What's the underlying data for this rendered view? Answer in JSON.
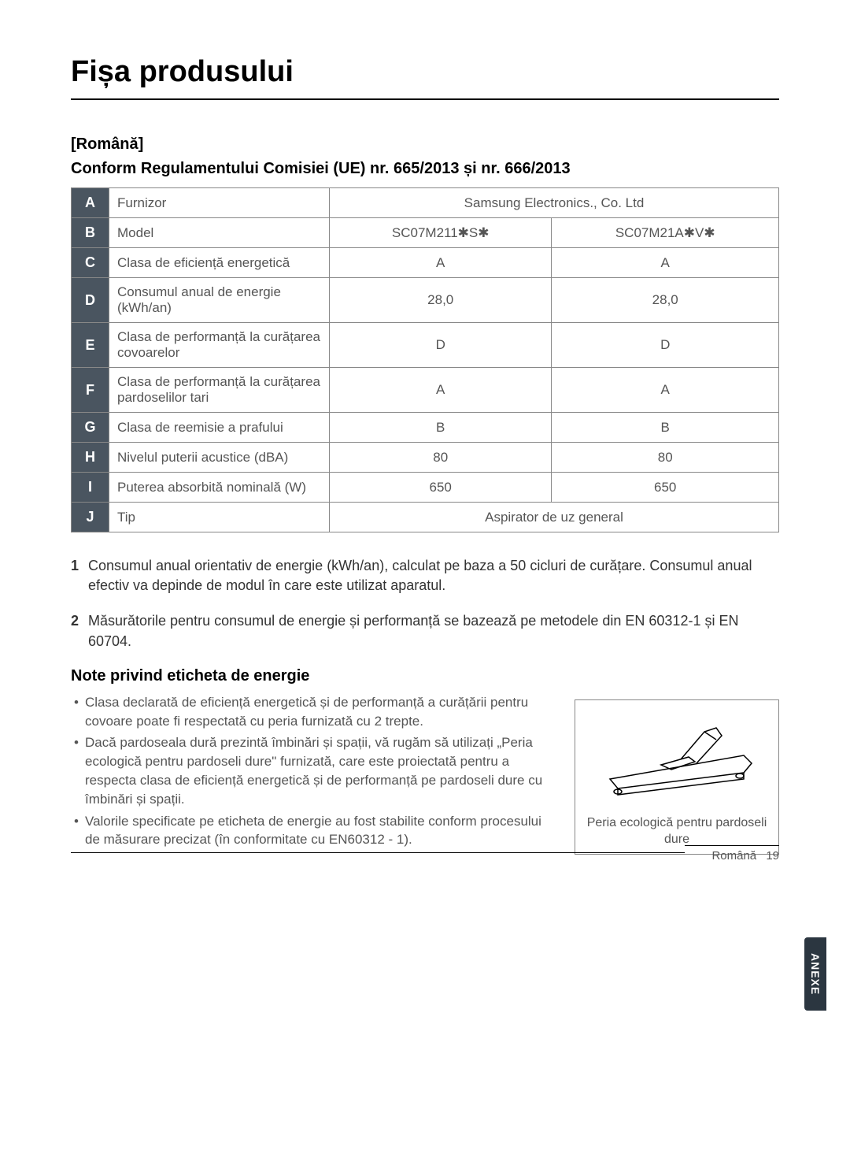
{
  "title": "Fișa produsului",
  "lang_label": "[Română]",
  "subtitle": "Conform Regulamentului Comisiei (UE) nr. 665/2013 și nr. 666/2013",
  "table": {
    "rows": [
      {
        "letter": "A",
        "label": "Furnizor",
        "merged": "Samsung Electronics., Co. Ltd"
      },
      {
        "letter": "B",
        "label": "Model",
        "v1": "SC07M211✱S✱",
        "v2": "SC07M21A✱V✱"
      },
      {
        "letter": "C",
        "label": "Clasa de eficiență energetică",
        "v1": "A",
        "v2": "A"
      },
      {
        "letter": "D",
        "label": "Consumul anual de energie (kWh/an)",
        "v1": "28,0",
        "v2": "28,0"
      },
      {
        "letter": "E",
        "label": "Clasa de performanță la curățarea covoarelor",
        "v1": "D",
        "v2": "D"
      },
      {
        "letter": "F",
        "label": "Clasa de performanță la curățarea pardoselilor tari",
        "v1": "A",
        "v2": "A"
      },
      {
        "letter": "G",
        "label": "Clasa de reemisie a prafului",
        "v1": "B",
        "v2": "B"
      },
      {
        "letter": "H",
        "label": "Nivelul puterii acustice (dBA)",
        "v1": "80",
        "v2": "80"
      },
      {
        "letter": "I",
        "label": "Puterea absorbită nominală (W)",
        "v1": "650",
        "v2": "650"
      },
      {
        "letter": "J",
        "label": "Tip",
        "merged": "Aspirator de uz general"
      }
    ]
  },
  "notes": [
    {
      "num": "1",
      "text": "Consumul anual orientativ de energie (kWh/an), calculat pe baza a 50 cicluri de curățare. Consumul anual efectiv va depinde de modul în care este utilizat aparatul."
    },
    {
      "num": "2",
      "text": "Măsurătorile pentru consumul de energie și performanță se bazează pe metodele din EN 60312-1 și EN 60704."
    }
  ],
  "section_heading": "Note privind eticheta de energie",
  "bullets": [
    "Clasa declarată de eficiență energetică și de performanță a curățării pentru covoare poate fi respectată cu peria furnizată cu 2 trepte.",
    "Dacă pardoseala dură prezintă îmbinări și spații, vă rugăm să utilizați „Peria ecologică pentru pardoseli dure\" furnizată, care este proiectată pentru a respecta clasa de eficiență energetică și de performanță pe pardoseli dure cu îmbinări și spații.",
    "Valorile specificate pe eticheta de energie au fost stabilite conform procesului de măsurare precizat (în conformitate cu EN60312 - 1)."
  ],
  "figure_caption": "Peria ecologică pentru pardoseli dure",
  "side_tab": "ANEXE",
  "footer_lang": "Română",
  "footer_page": "19"
}
